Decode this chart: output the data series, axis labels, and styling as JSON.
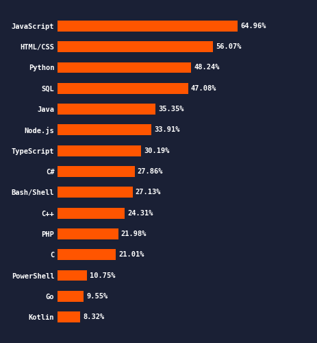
{
  "languages": [
    "JavaScript",
    "HTML/CSS",
    "Python",
    "SQL",
    "Java",
    "Node.js",
    "TypeScript",
    "C#",
    "Bash/Shell",
    "C++",
    "PHP",
    "C",
    "PowerShell",
    "Go",
    "Kotlin"
  ],
  "values": [
    64.96,
    56.07,
    48.24,
    47.08,
    35.35,
    33.91,
    30.19,
    27.86,
    27.13,
    24.31,
    21.98,
    21.01,
    10.75,
    9.55,
    8.32
  ],
  "labels": [
    "64.96%",
    "56.07%",
    "48.24%",
    "47.08%",
    "35.35%",
    "33.91%",
    "30.19%",
    "27.86%",
    "27.13%",
    "24.31%",
    "21.98%",
    "21.01%",
    "10.75%",
    "9.55%",
    "8.32%"
  ],
  "bar_color": "#FF5500",
  "background_color": "#1a2035",
  "text_color": "#ffffff",
  "label_fontsize": 7.5,
  "value_fontsize": 7.5,
  "bar_height": 0.52,
  "xlim": [
    0,
    80
  ]
}
